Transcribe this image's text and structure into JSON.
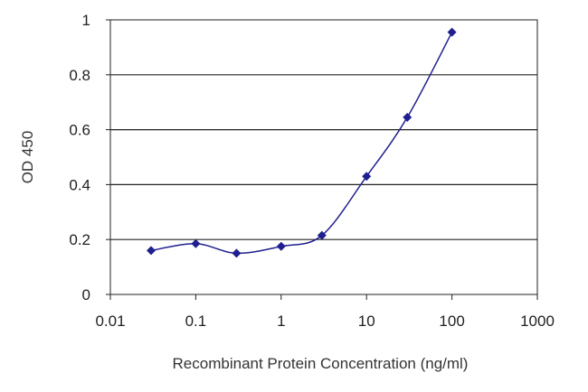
{
  "chart_data": {
    "type": "line",
    "xscale": "log",
    "xlabel": "Recombinant Protein Concentration (ng/ml)",
    "ylabel": "OD 450",
    "xlim": [
      0.01,
      1000
    ],
    "ylim": [
      0,
      1
    ],
    "xticks": [
      0.01,
      0.1,
      1,
      10,
      100,
      1000
    ],
    "xtick_labels": [
      "0.01",
      "0.1",
      "1",
      "10",
      "100",
      "1000"
    ],
    "yticks": [
      0,
      0.2,
      0.4,
      0.6,
      0.8,
      1
    ],
    "ytick_labels": [
      "0",
      "0.2",
      "0.4",
      "0.6",
      "0.8",
      "1"
    ],
    "grid": "horizontal",
    "legend": "none",
    "series": [
      {
        "x": [
          0.03,
          0.1,
          0.3,
          1,
          3,
          10,
          30,
          100
        ],
        "y": [
          0.16,
          0.185,
          0.15,
          0.175,
          0.215,
          0.43,
          0.645,
          0.955
        ]
      }
    ],
    "colors": {
      "series": "#1f1f8f",
      "grid": "#222222",
      "frame": "#222222"
    }
  }
}
